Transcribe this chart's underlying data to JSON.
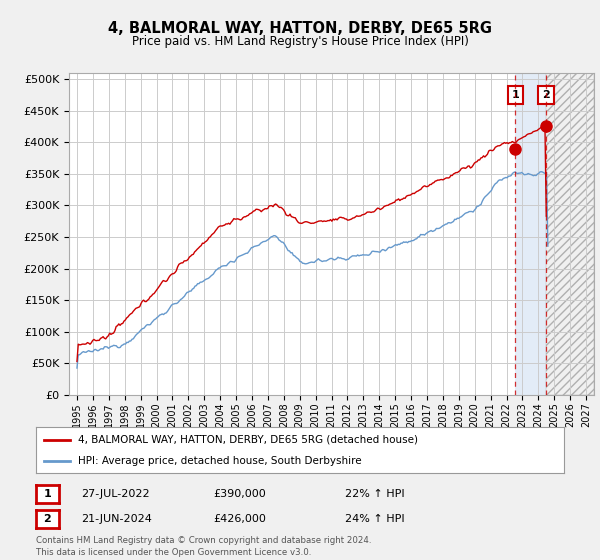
{
  "title": "4, BALMORAL WAY, HATTON, DERBY, DE65 5RG",
  "subtitle": "Price paid vs. HM Land Registry's House Price Index (HPI)",
  "ylabel_ticks": [
    "£0",
    "£50K",
    "£100K",
    "£150K",
    "£200K",
    "£250K",
    "£300K",
    "£350K",
    "£400K",
    "£450K",
    "£500K"
  ],
  "ytick_values": [
    0,
    50000,
    100000,
    150000,
    200000,
    250000,
    300000,
    350000,
    400000,
    450000,
    500000
  ],
  "ylim": [
    0,
    510000
  ],
  "xlim_start": 1994.5,
  "xlim_end": 2027.5,
  "xtick_years": [
    1995,
    1996,
    1997,
    1998,
    1999,
    2000,
    2001,
    2002,
    2003,
    2004,
    2005,
    2006,
    2007,
    2008,
    2009,
    2010,
    2011,
    2012,
    2013,
    2014,
    2015,
    2016,
    2017,
    2018,
    2019,
    2020,
    2021,
    2022,
    2023,
    2024,
    2025,
    2026,
    2027
  ],
  "background_color": "#f0f0f0",
  "plot_bg_color": "#ffffff",
  "grid_color": "#cccccc",
  "red_line_color": "#cc0000",
  "blue_line_color": "#6699cc",
  "label1_date": "27-JUL-2022",
  "label1_price": "£390,000",
  "label1_hpi": "22% ↑ HPI",
  "label2_date": "21-JUN-2024",
  "label2_price": "£426,000",
  "label2_hpi": "24% ↑ HPI",
  "legend_red": "4, BALMORAL WAY, HATTON, DERBY, DE65 5RG (detached house)",
  "legend_blue": "HPI: Average price, detached house, South Derbyshire",
  "footer": "Contains HM Land Registry data © Crown copyright and database right 2024.\nThis data is licensed under the Open Government Licence v3.0.",
  "sale1_x": 2022.56,
  "sale1_y": 390000,
  "sale2_x": 2024.47,
  "sale2_y": 426000,
  "shade_start": 2022.56,
  "shade_end": 2024.47,
  "hatch_start": 2024.47,
  "hatch_end": 2027.5
}
